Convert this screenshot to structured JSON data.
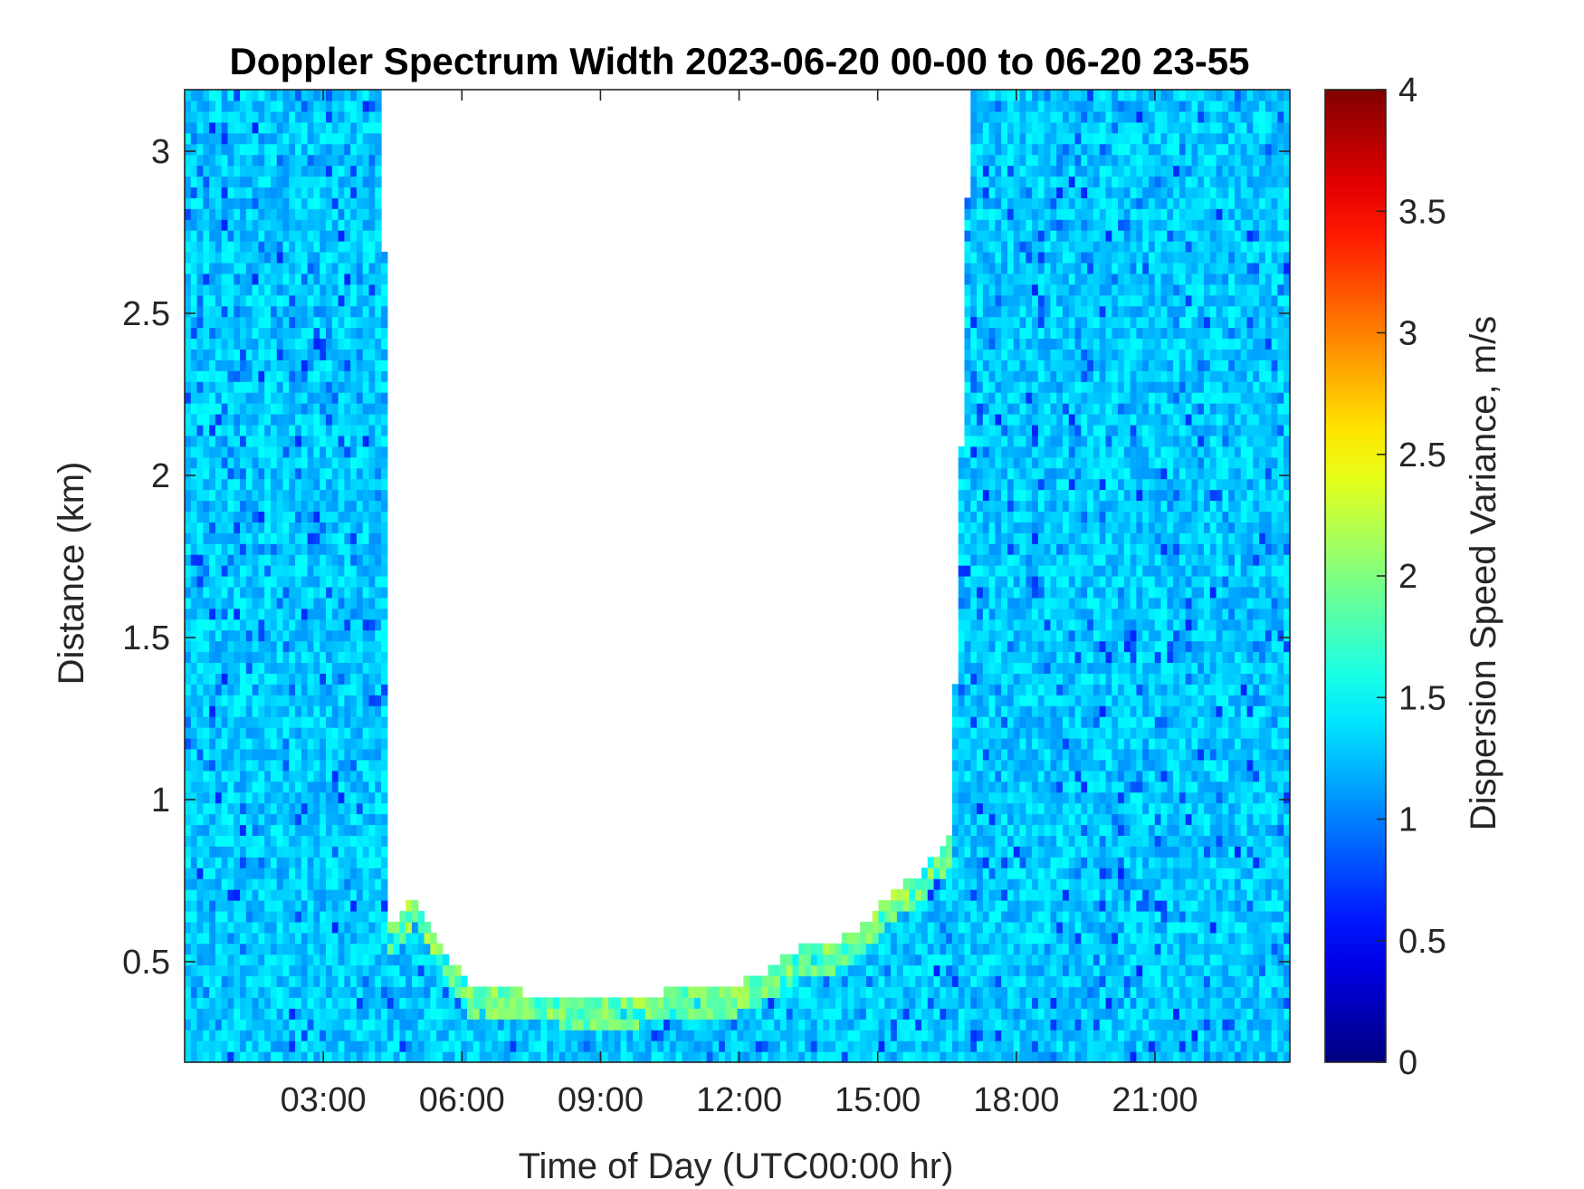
{
  "chart_data": {
    "type": "heatmap",
    "title": "Doppler Spectrum Width 2023-06-20 00-00 to 06-20 23-55",
    "xlabel": "Time of Day (UTC00:00 hr)",
    "ylabel": "Distance (km)",
    "colorbar_label": "Dispersion Speed Variance, m/s",
    "x_ticks": [
      {
        "value": 3,
        "label": "03:00"
      },
      {
        "value": 6,
        "label": "06:00"
      },
      {
        "value": 9,
        "label": "09:00"
      },
      {
        "value": 12,
        "label": "12:00"
      },
      {
        "value": 15,
        "label": "15:00"
      },
      {
        "value": 18,
        "label": "18:00"
      },
      {
        "value": 21,
        "label": "21:00"
      }
    ],
    "y_ticks": [
      {
        "value": 0.5,
        "label": "0.5"
      },
      {
        "value": 1,
        "label": "1"
      },
      {
        "value": 1.5,
        "label": "1.5"
      },
      {
        "value": 2,
        "label": "2"
      },
      {
        "value": 2.5,
        "label": "2.5"
      },
      {
        "value": 3,
        "label": "3"
      }
    ],
    "colorbar_ticks": [
      {
        "value": 0,
        "label": "0"
      },
      {
        "value": 0.5,
        "label": "0.5"
      },
      {
        "value": 1,
        "label": "1"
      },
      {
        "value": 1.5,
        "label": "1.5"
      },
      {
        "value": 2,
        "label": "2"
      },
      {
        "value": 2.5,
        "label": "2.5"
      },
      {
        "value": 3,
        "label": "3"
      },
      {
        "value": 3.5,
        "label": "3.5"
      },
      {
        "value": 4,
        "label": "4"
      }
    ],
    "x_range": [
      0,
      23.92
    ],
    "y_range": [
      0.19,
      3.19
    ],
    "color_range": [
      0,
      4
    ],
    "colormap": "jet",
    "grid": false,
    "dominant_value": 1.3,
    "data_gap_top_km": [
      {
        "hour": 0.0,
        "km": 3.19
      },
      {
        "hour": 1.3,
        "km": 3.19
      },
      {
        "hour": 2.6,
        "km": 3.19
      },
      {
        "hour": 4.3,
        "km": 3.19
      },
      {
        "hour": 4.4,
        "km": 0.6
      },
      {
        "hour": 5.0,
        "km": 0.7
      },
      {
        "hour": 5.6,
        "km": 0.55
      },
      {
        "hour": 6.1,
        "km": 0.43
      },
      {
        "hour": 7.0,
        "km": 0.41
      },
      {
        "hour": 8.0,
        "km": 0.4
      },
      {
        "hour": 9.0,
        "km": 0.38
      },
      {
        "hour": 10.0,
        "km": 0.4
      },
      {
        "hour": 11.0,
        "km": 0.42
      },
      {
        "hour": 12.0,
        "km": 0.43
      },
      {
        "hour": 12.7,
        "km": 0.48
      },
      {
        "hour": 13.4,
        "km": 0.56
      },
      {
        "hour": 14.0,
        "km": 0.55
      },
      {
        "hour": 14.7,
        "km": 0.62
      },
      {
        "hour": 15.3,
        "km": 0.72
      },
      {
        "hour": 16.0,
        "km": 0.78
      },
      {
        "hour": 16.6,
        "km": 0.9
      },
      {
        "hour": 17.0,
        "km": 3.19
      },
      {
        "hour": 23.92,
        "km": 3.19
      }
    ]
  }
}
